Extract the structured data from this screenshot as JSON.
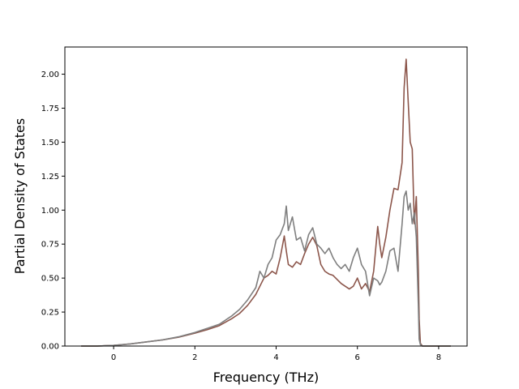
{
  "chart_data": {
    "type": "line",
    "title": "",
    "xlabel": "Frequency (THz)",
    "ylabel": "Partial Density of States",
    "xlim": [
      -1.2,
      8.7
    ],
    "ylim": [
      0.0,
      2.2
    ],
    "xticks": [
      0,
      2,
      4,
      6,
      8
    ],
    "xtick_labels": [
      "0",
      "2",
      "4",
      "6",
      "8"
    ],
    "yticks": [
      0.0,
      0.25,
      0.5,
      0.75,
      1.0,
      1.25,
      1.5,
      1.75,
      2.0
    ],
    "ytick_labels": [
      "0.00",
      "0.25",
      "0.50",
      "0.75",
      "1.00",
      "1.25",
      "1.50",
      "1.75",
      "2.00"
    ],
    "grid": false,
    "legend": "none",
    "series": [
      {
        "color": "#8c564b",
        "x": [
          -0.8,
          -0.4,
          0.0,
          0.4,
          0.8,
          1.2,
          1.6,
          2.0,
          2.3,
          2.6,
          2.9,
          3.1,
          3.3,
          3.5,
          3.6,
          3.7,
          3.8,
          3.9,
          4.0,
          4.1,
          4.2,
          4.25,
          4.3,
          4.4,
          4.5,
          4.6,
          4.7,
          4.8,
          4.9,
          5.0,
          5.1,
          5.2,
          5.3,
          5.4,
          5.5,
          5.6,
          5.7,
          5.8,
          5.9,
          6.0,
          6.1,
          6.2,
          6.3,
          6.4,
          6.5,
          6.55,
          6.6,
          6.7,
          6.8,
          6.9,
          7.0,
          7.1,
          7.15,
          7.2,
          7.25,
          7.3,
          7.35,
          7.4,
          7.45,
          7.5,
          7.52,
          7.55,
          7.6,
          8.3
        ],
        "y": [
          0.0,
          0.0,
          0.005,
          0.015,
          0.03,
          0.045,
          0.065,
          0.095,
          0.12,
          0.15,
          0.2,
          0.24,
          0.3,
          0.38,
          0.44,
          0.5,
          0.52,
          0.55,
          0.53,
          0.65,
          0.81,
          0.7,
          0.6,
          0.58,
          0.62,
          0.6,
          0.68,
          0.75,
          0.8,
          0.74,
          0.6,
          0.55,
          0.53,
          0.52,
          0.49,
          0.46,
          0.44,
          0.42,
          0.44,
          0.5,
          0.42,
          0.46,
          0.4,
          0.55,
          0.88,
          0.75,
          0.65,
          0.8,
          1.0,
          1.16,
          1.15,
          1.35,
          1.9,
          2.11,
          1.8,
          1.5,
          1.45,
          0.9,
          1.1,
          0.55,
          0.2,
          0.02,
          0.0,
          0.0
        ]
      },
      {
        "color": "#7f7f7f",
        "x": [
          -0.8,
          -0.4,
          0.0,
          0.4,
          0.8,
          1.2,
          1.6,
          2.0,
          2.3,
          2.6,
          2.9,
          3.1,
          3.3,
          3.5,
          3.6,
          3.7,
          3.8,
          3.9,
          4.0,
          4.1,
          4.2,
          4.25,
          4.3,
          4.4,
          4.5,
          4.6,
          4.7,
          4.8,
          4.9,
          5.0,
          5.1,
          5.2,
          5.3,
          5.4,
          5.5,
          5.6,
          5.7,
          5.8,
          5.9,
          6.0,
          6.1,
          6.2,
          6.3,
          6.4,
          6.5,
          6.55,
          6.6,
          6.7,
          6.8,
          6.9,
          7.0,
          7.1,
          7.15,
          7.2,
          7.25,
          7.3,
          7.35,
          7.4,
          7.45,
          7.5,
          7.52,
          7.55,
          7.6,
          8.3
        ],
        "y": [
          0.0,
          0.0,
          0.005,
          0.015,
          0.03,
          0.045,
          0.068,
          0.1,
          0.13,
          0.16,
          0.22,
          0.27,
          0.34,
          0.43,
          0.55,
          0.5,
          0.6,
          0.65,
          0.78,
          0.82,
          0.9,
          1.03,
          0.85,
          0.95,
          0.78,
          0.8,
          0.7,
          0.82,
          0.87,
          0.75,
          0.72,
          0.68,
          0.72,
          0.65,
          0.6,
          0.57,
          0.6,
          0.55,
          0.65,
          0.72,
          0.6,
          0.55,
          0.37,
          0.5,
          0.48,
          0.45,
          0.47,
          0.55,
          0.7,
          0.72,
          0.55,
          0.9,
          1.1,
          1.14,
          1.0,
          1.05,
          0.9,
          0.98,
          0.8,
          0.3,
          0.05,
          0.01,
          0.0,
          0.0
        ]
      }
    ]
  }
}
